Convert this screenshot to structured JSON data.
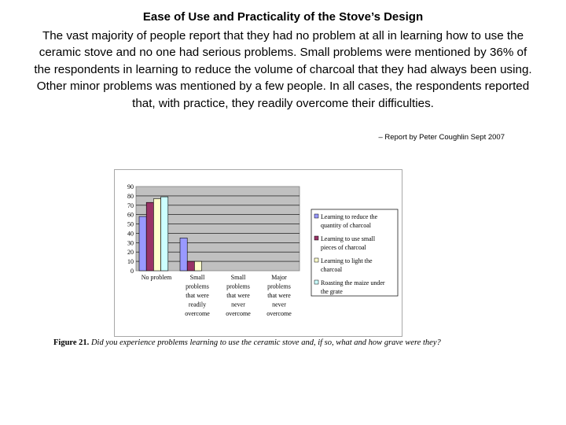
{
  "slide": {
    "title": "Ease of Use and Practicality of the Stove’s Design",
    "body": "The vast majority of people report that they had no problem at all in learning how to use the ceramic stove and no one had serious problems. Small problems were mentioned by 36% of the respondents in learning to reduce the volume of charcoal that they had always been using. Other minor problems was mentioned by a few people. In all cases, the respondents reported that, with practice, they readily overcome their difficulties.",
    "byline": "– Report by Peter Coughlin Sept 2007"
  },
  "figure": {
    "label": "Figure 21.",
    "text": "Did you experience problems learning to use the ceramic stove and, if so, what and how grave were they?"
  },
  "colors": {
    "plot_bg": "#c0c0c0",
    "series": [
      "#9999ff",
      "#993366",
      "#ffffcc",
      "#ccffff"
    ]
  },
  "chart_data": {
    "type": "bar",
    "categories": [
      [
        "No problem"
      ],
      [
        "Small",
        "problems",
        "that were",
        "readily",
        "overcome"
      ],
      [
        "Small",
        "problems",
        "that were",
        "never",
        "overcome"
      ],
      [
        "Major",
        "problems",
        "that were",
        "never",
        "overcome"
      ]
    ],
    "series": [
      {
        "name": [
          "Learning to reduce the",
          "quantity of charcoal"
        ],
        "values": [
          58,
          35,
          0,
          0
        ]
      },
      {
        "name": [
          "Learning to use small",
          "pieces of charcoal"
        ],
        "values": [
          73,
          10,
          0,
          0
        ]
      },
      {
        "name": [
          "Learning to light the",
          "charcoal"
        ],
        "values": [
          77,
          10,
          0,
          0
        ]
      },
      {
        "name": [
          "Roasting the maize under",
          "the grate"
        ],
        "values": [
          79,
          0,
          0,
          0
        ]
      }
    ],
    "yticks": [
      "0",
      "10",
      "20",
      "30",
      "40",
      "50",
      "60",
      "70",
      "80",
      "90"
    ],
    "ylim": [
      0,
      90
    ],
    "grid": true,
    "legend": "right"
  }
}
